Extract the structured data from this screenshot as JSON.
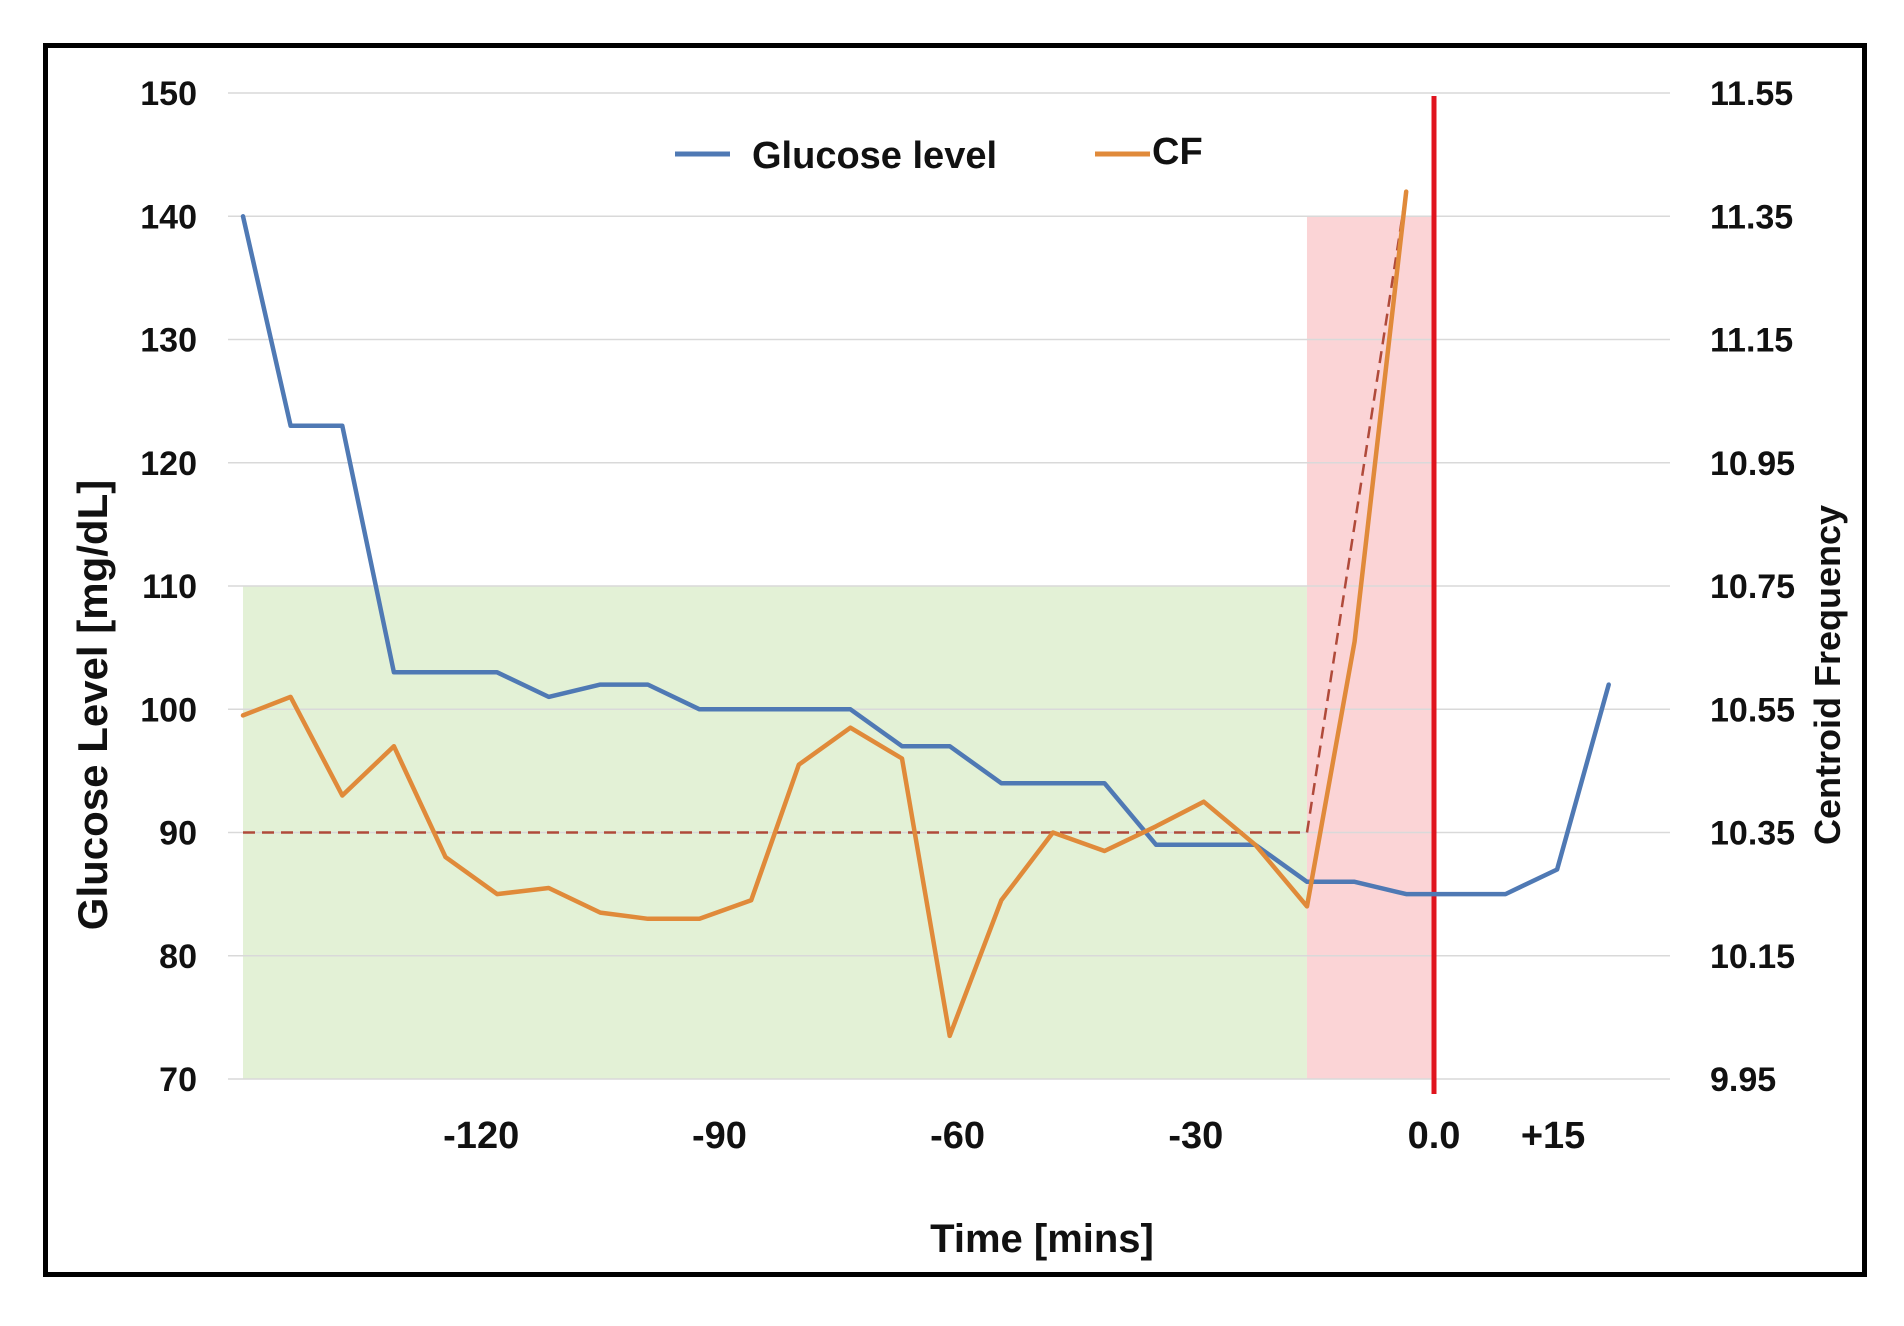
{
  "chart_data": {
    "type": "line",
    "xlabel": "Time [mins]",
    "ylabel_left": "Glucose Level [mg/dL]",
    "ylabel_right": "Centroid Frequency",
    "xlim": [
      -145,
      25
    ],
    "ylim_left": [
      70,
      150
    ],
    "ylim_right": [
      9.95,
      11.55
    ],
    "x_ticks": [
      {
        "value": -120,
        "label": "-120"
      },
      {
        "value": -90,
        "label": "-90"
      },
      {
        "value": -60,
        "label": "-60"
      },
      {
        "value": -30,
        "label": "-30"
      },
      {
        "value": 0,
        "label": "0.0"
      },
      {
        "value": 15,
        "label": "+15"
      }
    ],
    "y_left_ticks": [
      {
        "value": 150,
        "label": "150"
      },
      {
        "value": 140,
        "label": "140"
      },
      {
        "value": 130,
        "label": "130"
      },
      {
        "value": 120,
        "label": "120"
      },
      {
        "value": 110,
        "label": "110"
      },
      {
        "value": 100,
        "label": "100"
      },
      {
        "value": 90,
        "label": "90"
      },
      {
        "value": 80,
        "label": "80"
      },
      {
        "value": 70,
        "label": "70"
      }
    ],
    "y_right_ticks": [
      {
        "value": 11.55,
        "label": "11.55"
      },
      {
        "value": 11.35,
        "label": "11.35"
      },
      {
        "value": 11.15,
        "label": "11.15"
      },
      {
        "value": 10.95,
        "label": "10.95"
      },
      {
        "value": 10.75,
        "label": "10.75"
      },
      {
        "value": 10.55,
        "label": "10.55"
      },
      {
        "value": 10.35,
        "label": "10.35"
      },
      {
        "value": 10.15,
        "label": "10.15"
      },
      {
        "value": 9.95,
        "label": "9.95"
      }
    ],
    "grid": true,
    "legend_position": "top-center",
    "series": [
      {
        "name": "Glucose level",
        "axis": "left",
        "color": "#4f79b4",
        "x": [
          -150,
          -144,
          -137.5,
          -131,
          -124.5,
          -118,
          -111.5,
          -105,
          -99,
          -92.5,
          -86,
          -80,
          -73.5,
          -67,
          -61,
          -54.5,
          -48,
          -41.5,
          -35,
          -29,
          -22.5,
          -16,
          -10,
          -3.5,
          3,
          9,
          15.5,
          22
        ],
        "y": [
          140,
          123,
          123,
          103,
          103,
          103,
          101,
          102,
          102,
          100,
          100,
          100,
          100,
          97,
          97,
          94,
          94,
          94,
          89,
          89,
          89,
          86,
          86,
          85,
          85,
          85,
          87,
          102
        ]
      },
      {
        "name": "CF",
        "axis": "right",
        "color": "#e08a3a",
        "x": [
          -150,
          -144,
          -137.5,
          -131,
          -124.5,
          -118,
          -111.5,
          -105,
          -99,
          -92.5,
          -86,
          -80,
          -73.5,
          -67,
          -61,
          -54.5,
          -48,
          -41.5,
          -35,
          -29,
          -22.5,
          -16,
          -10,
          -3.5
        ],
        "y": [
          10.54,
          10.57,
          10.41,
          10.49,
          10.31,
          10.25,
          10.26,
          10.22,
          10.21,
          10.21,
          10.24,
          10.46,
          10.52,
          10.47,
          10.02,
          10.24,
          10.35,
          10.32,
          10.36,
          10.4,
          10.33,
          10.23,
          10.66,
          11.39
        ]
      }
    ],
    "reference_lines": [
      {
        "style": "dashed",
        "color": "#b04a3a",
        "axis": "right",
        "x": [
          -150,
          -16,
          -3.5
        ],
        "y": [
          10.35,
          10.35,
          11.39
        ]
      },
      {
        "style": "solid",
        "color": "#e0141e",
        "x_value": 0
      }
    ],
    "shaded_regions": [
      {
        "color": "#e3f1d6",
        "x_range": [
          -150,
          -16
        ],
        "y_range_left": [
          70,
          110
        ]
      },
      {
        "color": "#fbd4d6",
        "x_range": [
          -16,
          0
        ],
        "y_range_left": [
          70,
          140
        ]
      }
    ]
  }
}
